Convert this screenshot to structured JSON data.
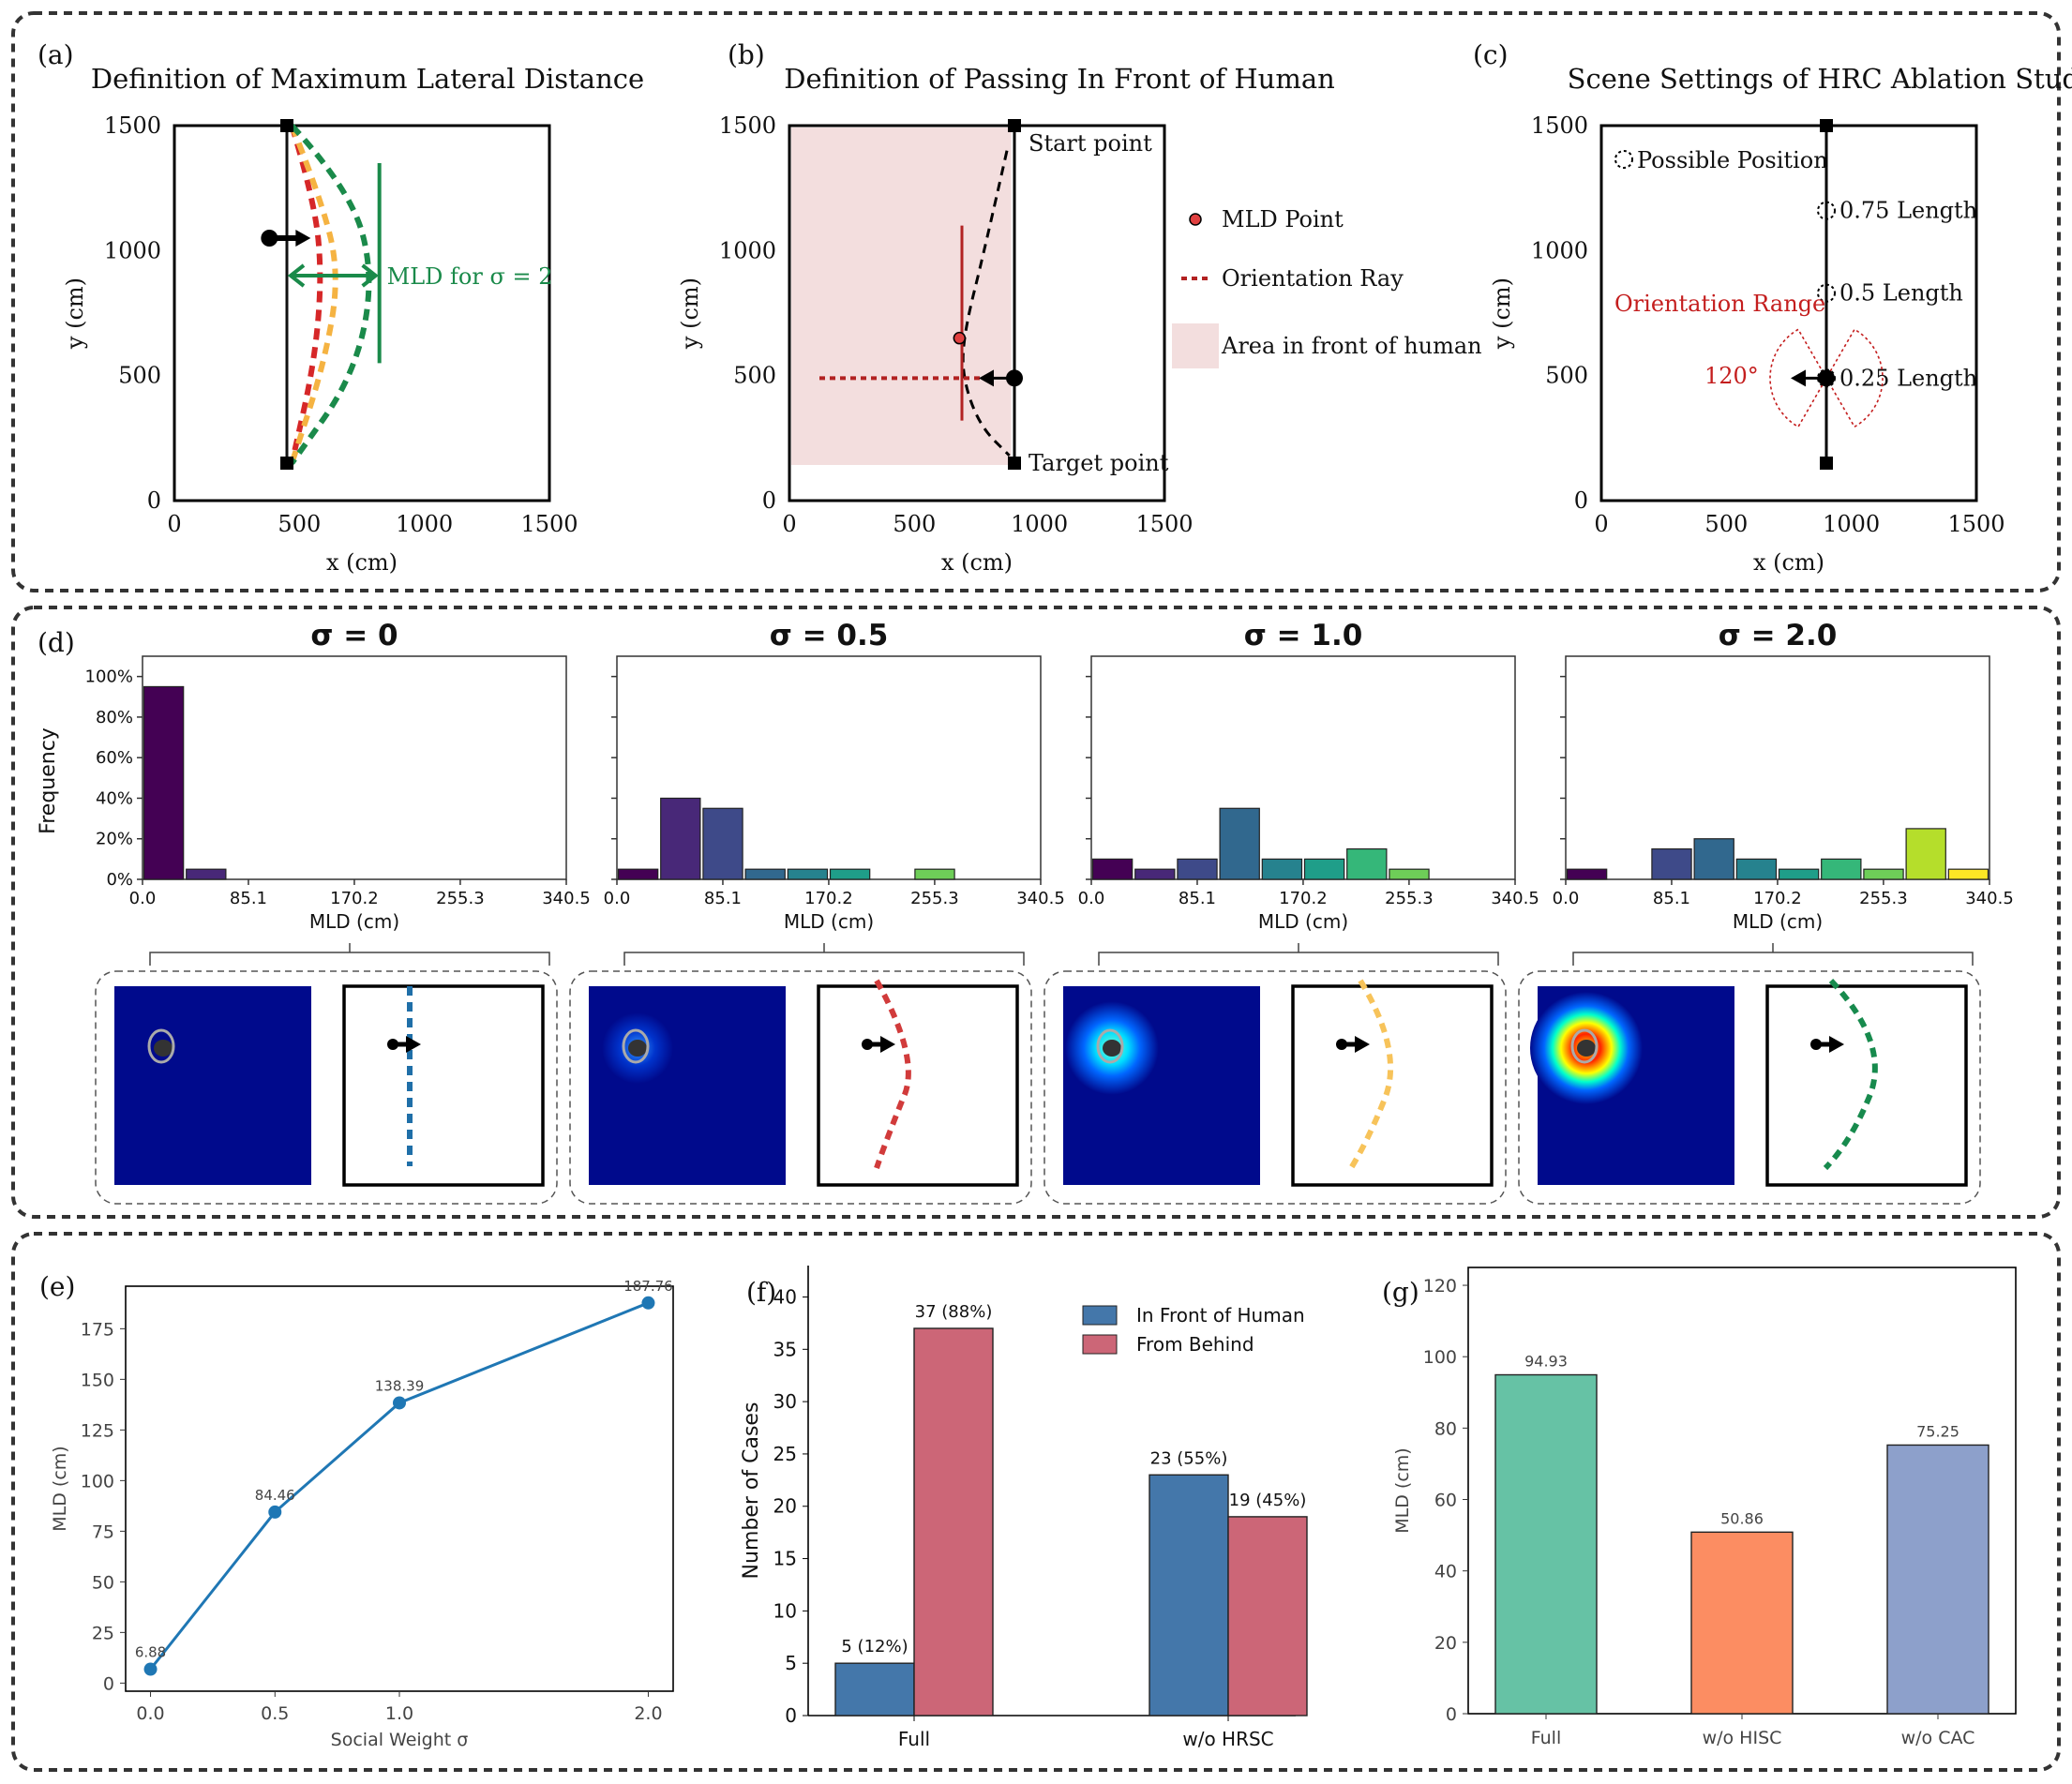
{
  "chart_data": [
    {
      "id": "a",
      "type": "line",
      "panel_label": "(a)",
      "title": "Definition of Maximum Lateral Distance",
      "xlabel": "x (cm)",
      "ylabel": "y (cm)",
      "xlim": [
        0,
        1500
      ],
      "ylim": [
        0,
        1500
      ],
      "xticks": [
        "0",
        "500",
        "1000",
        "1500"
      ],
      "yticks": [
        "0",
        "500",
        "1000",
        "1500"
      ],
      "annotation": "MLD for σ = 2",
      "start": [
        450,
        1500
      ],
      "target": [
        450,
        150
      ],
      "human": [
        380,
        1050
      ],
      "series": [
        {
          "name": "σ = 0",
          "color": "#1f77b4",
          "points": [
            [
              450,
              1500
            ],
            [
              450,
              150
            ]
          ]
        },
        {
          "name": "σ = 0.5",
          "color": "#d62728",
          "points": [
            [
              470,
              1500
            ],
            [
              560,
              1200
            ],
            [
              590,
              900
            ],
            [
              560,
              550
            ],
            [
              470,
              150
            ]
          ]
        },
        {
          "name": "σ = 1.0",
          "color": "#f5b342",
          "points": [
            [
              470,
              1500
            ],
            [
              590,
              1200
            ],
            [
              660,
              900
            ],
            [
              600,
              550
            ],
            [
              470,
              150
            ]
          ]
        },
        {
          "name": "σ = 2.0",
          "color": "#1a8a4a",
          "points": [
            [
              470,
              1500
            ],
            [
              700,
              1250
            ],
            [
              800,
              900
            ],
            [
              720,
              500
            ],
            [
              470,
              150
            ]
          ]
        }
      ],
      "mld_bracket": {
        "x0": 450,
        "x1": 820,
        "y": 900,
        "vy0": 550,
        "vy1": 1350
      }
    },
    {
      "id": "b",
      "type": "line",
      "panel_label": "(b)",
      "title": "Definition of Passing In Front of Human",
      "xlabel": "x (cm)",
      "ylabel": "y (cm)",
      "xlim": [
        0,
        1500
      ],
      "ylim": [
        0,
        1500
      ],
      "xticks": [
        "0",
        "500",
        "1000",
        "1500"
      ],
      "yticks": [
        "0",
        "500",
        "1000",
        "1500"
      ],
      "start_label": "Start point",
      "target_label": "Target point",
      "front_area": {
        "x0": 0,
        "x1": 880,
        "y0": 150,
        "y1": 1500
      },
      "start": [
        900,
        1500
      ],
      "target": [
        900,
        150
      ],
      "human": [
        900,
        490
      ],
      "path": [
        [
          870,
          1400
        ],
        [
          780,
          1000
        ],
        [
          700,
          680
        ],
        [
          690,
          500
        ],
        [
          760,
          300
        ],
        [
          880,
          180
        ]
      ],
      "mld_point": [
        680,
        650
      ],
      "mld_line": {
        "x": 690,
        "y0": 320,
        "y1": 1100
      },
      "ray": {
        "x0": 120,
        "x1": 900,
        "y": 490
      },
      "legend": [
        {
          "label": "MLD Point"
        },
        {
          "label": "Orientation Ray"
        },
        {
          "label": "Area in front of human"
        }
      ]
    },
    {
      "id": "c",
      "type": "scatter",
      "panel_label": "(c)",
      "title": "Scene Settings of HRC Ablation Study",
      "xlabel": "x (cm)",
      "ylabel": "y (cm)",
      "xlim": [
        0,
        1500
      ],
      "ylim": [
        0,
        1500
      ],
      "xticks": [
        "0",
        "500",
        "1000",
        "1500"
      ],
      "yticks": [
        "0",
        "500",
        "1000",
        "1500"
      ],
      "legend_label": "Possible Position",
      "start": [
        900,
        1500
      ],
      "target": [
        900,
        150
      ],
      "human": [
        900,
        490
      ],
      "positions": [
        {
          "label": "0.75 Length",
          "xy": [
            900,
            1160
          ]
        },
        {
          "label": "0.5 Length",
          "xy": [
            900,
            830
          ]
        },
        {
          "label": "0.25 Length",
          "xy": [
            900,
            490
          ]
        }
      ],
      "orientation_label": "Orientation Range",
      "angle_label": "120°"
    },
    {
      "id": "d",
      "type": "bar",
      "panel_label": "(d)",
      "ylabel": "Frequency",
      "xlabel": "MLD (cm)",
      "xlim": [
        0,
        340.5
      ],
      "ylim": [
        0,
        110
      ],
      "xticks": [
        0.0,
        85.1,
        170.2,
        255.3,
        340.5
      ],
      "xtick_labels": [
        "0.0",
        "85.1",
        "170.2",
        "255.3",
        "340.5"
      ],
      "ytick_labels": [
        "0%",
        "20%",
        "40%",
        "60%",
        "80%",
        "100%"
      ],
      "bin_colors": [
        "#440154",
        "#482878",
        "#3e4a89",
        "#31688e",
        "#26828e",
        "#1f9e89",
        "#35b779",
        "#6ece58",
        "#b5de2b",
        "#fde725"
      ],
      "subplots": [
        {
          "title": "σ = 0",
          "values": [
            95,
            5,
            0,
            0,
            0,
            0,
            0,
            0,
            0,
            0
          ],
          "path_color": "#1f6fa8",
          "glow": 0.0,
          "path_kind": "straight"
        },
        {
          "title": "σ = 0.5",
          "values": [
            5,
            40,
            35,
            5,
            5,
            5,
            0,
            5,
            0,
            0
          ],
          "path_color": "#d13b3b",
          "glow": 0.35,
          "path_kind": "curve1"
        },
        {
          "title": "σ = 1.0",
          "values": [
            10,
            5,
            10,
            35,
            10,
            10,
            15,
            5,
            0,
            0
          ],
          "path_color": "#f7c35a",
          "glow": 0.7,
          "path_kind": "curve2"
        },
        {
          "title": "σ = 2.0",
          "values": [
            5,
            0,
            15,
            20,
            10,
            5,
            10,
            5,
            25,
            5
          ],
          "path_color": "#178a4d",
          "glow": 1.0,
          "path_kind": "curve3"
        }
      ]
    },
    {
      "id": "e",
      "type": "line",
      "panel_label": "(e)",
      "xlabel": "Social Weight σ",
      "ylabel": "MLD (cm)",
      "x": [
        0.0,
        0.5,
        1.0,
        2.0
      ],
      "y": [
        6.88,
        84.46,
        138.39,
        187.76
      ],
      "point_labels": [
        "6.88",
        "84.46",
        "138.39",
        "187.76"
      ],
      "xticks": [
        "0.0",
        "0.5",
        "1.0",
        "2.0"
      ],
      "yticks": [
        "0",
        "25",
        "50",
        "75",
        "100",
        "125",
        "150",
        "175"
      ],
      "xlim": [
        -0.1,
        2.1
      ],
      "ylim": [
        -4,
        196
      ],
      "color": "#1f77b4"
    },
    {
      "id": "f",
      "type": "bar",
      "panel_label": "(f)",
      "ylabel": "Number of Cases",
      "categories": [
        "Full",
        "w/o HRSC"
      ],
      "series": [
        {
          "name": "In Front of Human",
          "color": "#4477aa",
          "values": [
            5,
            23
          ],
          "labels": [
            "5 (12%)",
            "23 (55%)"
          ]
        },
        {
          "name": "From Behind",
          "color": "#cc6677",
          "values": [
            37,
            19
          ],
          "labels": [
            "37 (88%)",
            "19 (45%)"
          ]
        }
      ],
      "yticks": [
        "0",
        "5",
        "10",
        "15",
        "20",
        "25",
        "30",
        "35",
        "40"
      ],
      "ylim": [
        0,
        43
      ]
    },
    {
      "id": "g",
      "type": "bar",
      "panel_label": "(g)",
      "ylabel": "MLD (cm)",
      "categories": [
        "Full",
        "w/o HISC",
        "w/o CAC"
      ],
      "values": [
        94.93,
        50.86,
        75.25
      ],
      "value_labels": [
        "94.93",
        "50.86",
        "75.25"
      ],
      "colors": [
        "#66c2a5",
        "#fc8d62",
        "#8da0cb"
      ],
      "yticks": [
        "0",
        "20",
        "40",
        "60",
        "80",
        "100",
        "120"
      ],
      "ylim": [
        0,
        125
      ]
    }
  ]
}
